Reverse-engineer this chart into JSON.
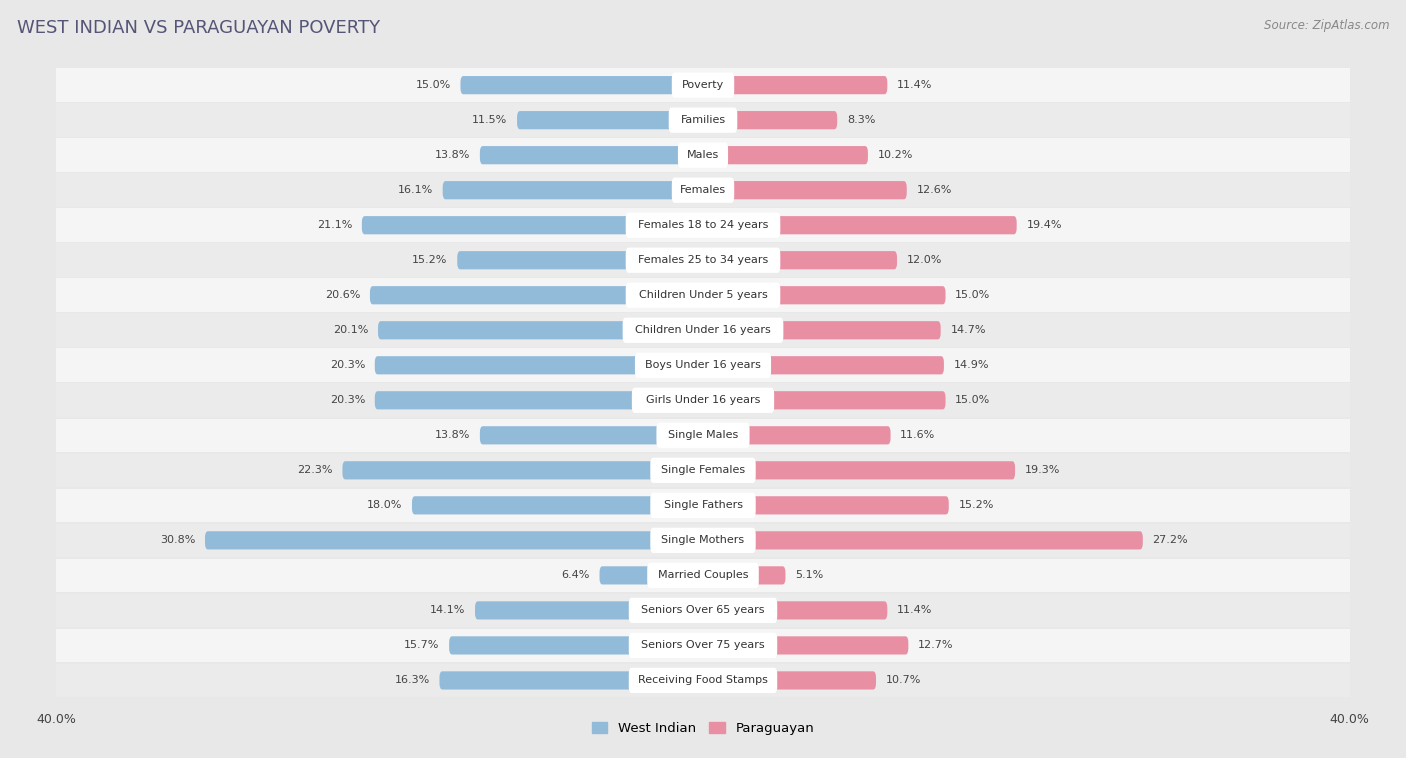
{
  "title": "WEST INDIAN VS PARAGUAYAN POVERTY",
  "source": "Source: ZipAtlas.com",
  "categories": [
    "Poverty",
    "Families",
    "Males",
    "Females",
    "Females 18 to 24 years",
    "Females 25 to 34 years",
    "Children Under 5 years",
    "Children Under 16 years",
    "Boys Under 16 years",
    "Girls Under 16 years",
    "Single Males",
    "Single Females",
    "Single Fathers",
    "Single Mothers",
    "Married Couples",
    "Seniors Over 65 years",
    "Seniors Over 75 years",
    "Receiving Food Stamps"
  ],
  "west_indian": [
    15.0,
    11.5,
    13.8,
    16.1,
    21.1,
    15.2,
    20.6,
    20.1,
    20.3,
    20.3,
    13.8,
    22.3,
    18.0,
    30.8,
    6.4,
    14.1,
    15.7,
    16.3
  ],
  "paraguayan": [
    11.4,
    8.3,
    10.2,
    12.6,
    19.4,
    12.0,
    15.0,
    14.7,
    14.9,
    15.0,
    11.6,
    19.3,
    15.2,
    27.2,
    5.1,
    11.4,
    12.7,
    10.7
  ],
  "west_indian_color": "#92bbda",
  "paraguayan_color": "#e88fa4",
  "outer_bg": "#e8e8e8",
  "row_bg_odd": "#f5f5f5",
  "row_bg_even": "#ebebeb",
  "label_bg": "#ffffff",
  "max_val": 40.0,
  "legend_west_indian": "West Indian",
  "legend_paraguayan": "Paraguayan",
  "title_color": "#555577",
  "source_color": "#888888",
  "value_color": "#444444",
  "label_text_color": "#333333"
}
